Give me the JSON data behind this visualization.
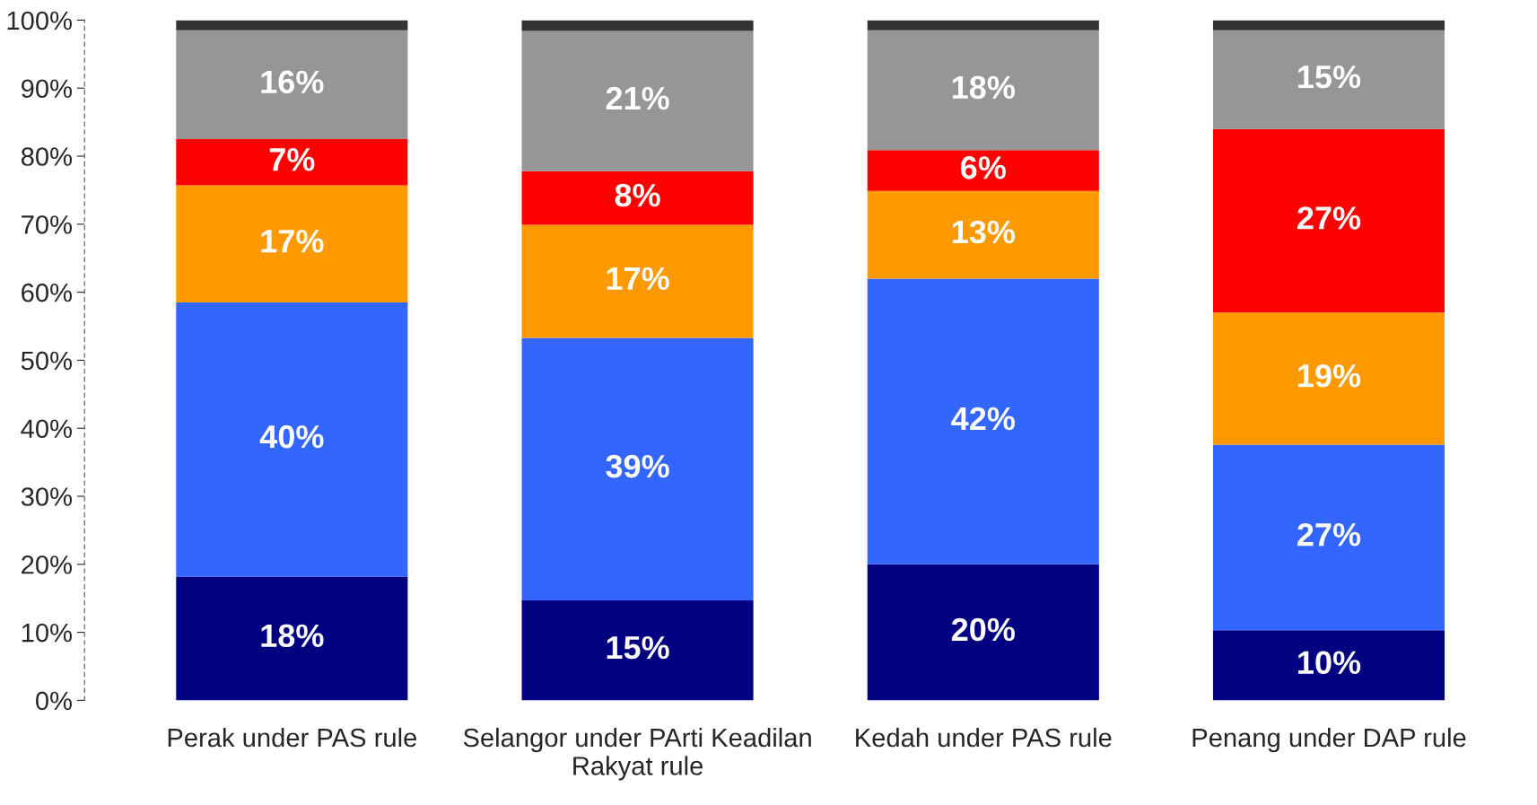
{
  "chart_data": {
    "type": "bar",
    "stacked": true,
    "categories": [
      "Perak under PAS rule",
      "Selangor under PArti Keadilan\nRakyat rule",
      "Kedah under PAS rule",
      "Penang under DAP rule"
    ],
    "series": [
      {
        "color": "#000080",
        "values": [
          18.2,
          14.7,
          20.0,
          10.3
        ],
        "value_labels": [
          "18%",
          "15%",
          "20%",
          "10%"
        ]
      },
      {
        "color": "#3366ff",
        "values": [
          40.3,
          38.6,
          42.0,
          27.3
        ],
        "value_labels": [
          "40%",
          "39%",
          "42%",
          "27%"
        ]
      },
      {
        "color": "#ff9900",
        "values": [
          17.2,
          16.6,
          12.9,
          19.4
        ],
        "value_labels": [
          "17%",
          "17%",
          "13%",
          "19%"
        ]
      },
      {
        "color": "#ff0000",
        "values": [
          6.8,
          7.9,
          6.0,
          27.0
        ],
        "value_labels": [
          "7%",
          "8%",
          "6%",
          "27%"
        ]
      },
      {
        "color": "#969696",
        "values": [
          16.0,
          20.6,
          17.6,
          14.5
        ],
        "value_labels": [
          "16%",
          "21%",
          "18%",
          "15%"
        ]
      },
      {
        "color": "#333333",
        "values": [
          1.5,
          1.6,
          1.5,
          1.5
        ]
      }
    ],
    "ylim": [
      0,
      100
    ],
    "yticks": [
      {
        "value": 0,
        "label": "0%"
      },
      {
        "value": 10,
        "label": "10%"
      },
      {
        "value": 20,
        "label": "20%"
      },
      {
        "value": 30,
        "label": "30%"
      },
      {
        "value": 40,
        "label": "40%"
      },
      {
        "value": 50,
        "label": "50%"
      },
      {
        "value": 60,
        "label": "60%"
      },
      {
        "value": 70,
        "label": "70%"
      },
      {
        "value": 80,
        "label": "80%"
      },
      {
        "value": 90,
        "label": "90%"
      },
      {
        "value": 100,
        "label": "100%"
      }
    ],
    "grid": false,
    "legend": false
  }
}
